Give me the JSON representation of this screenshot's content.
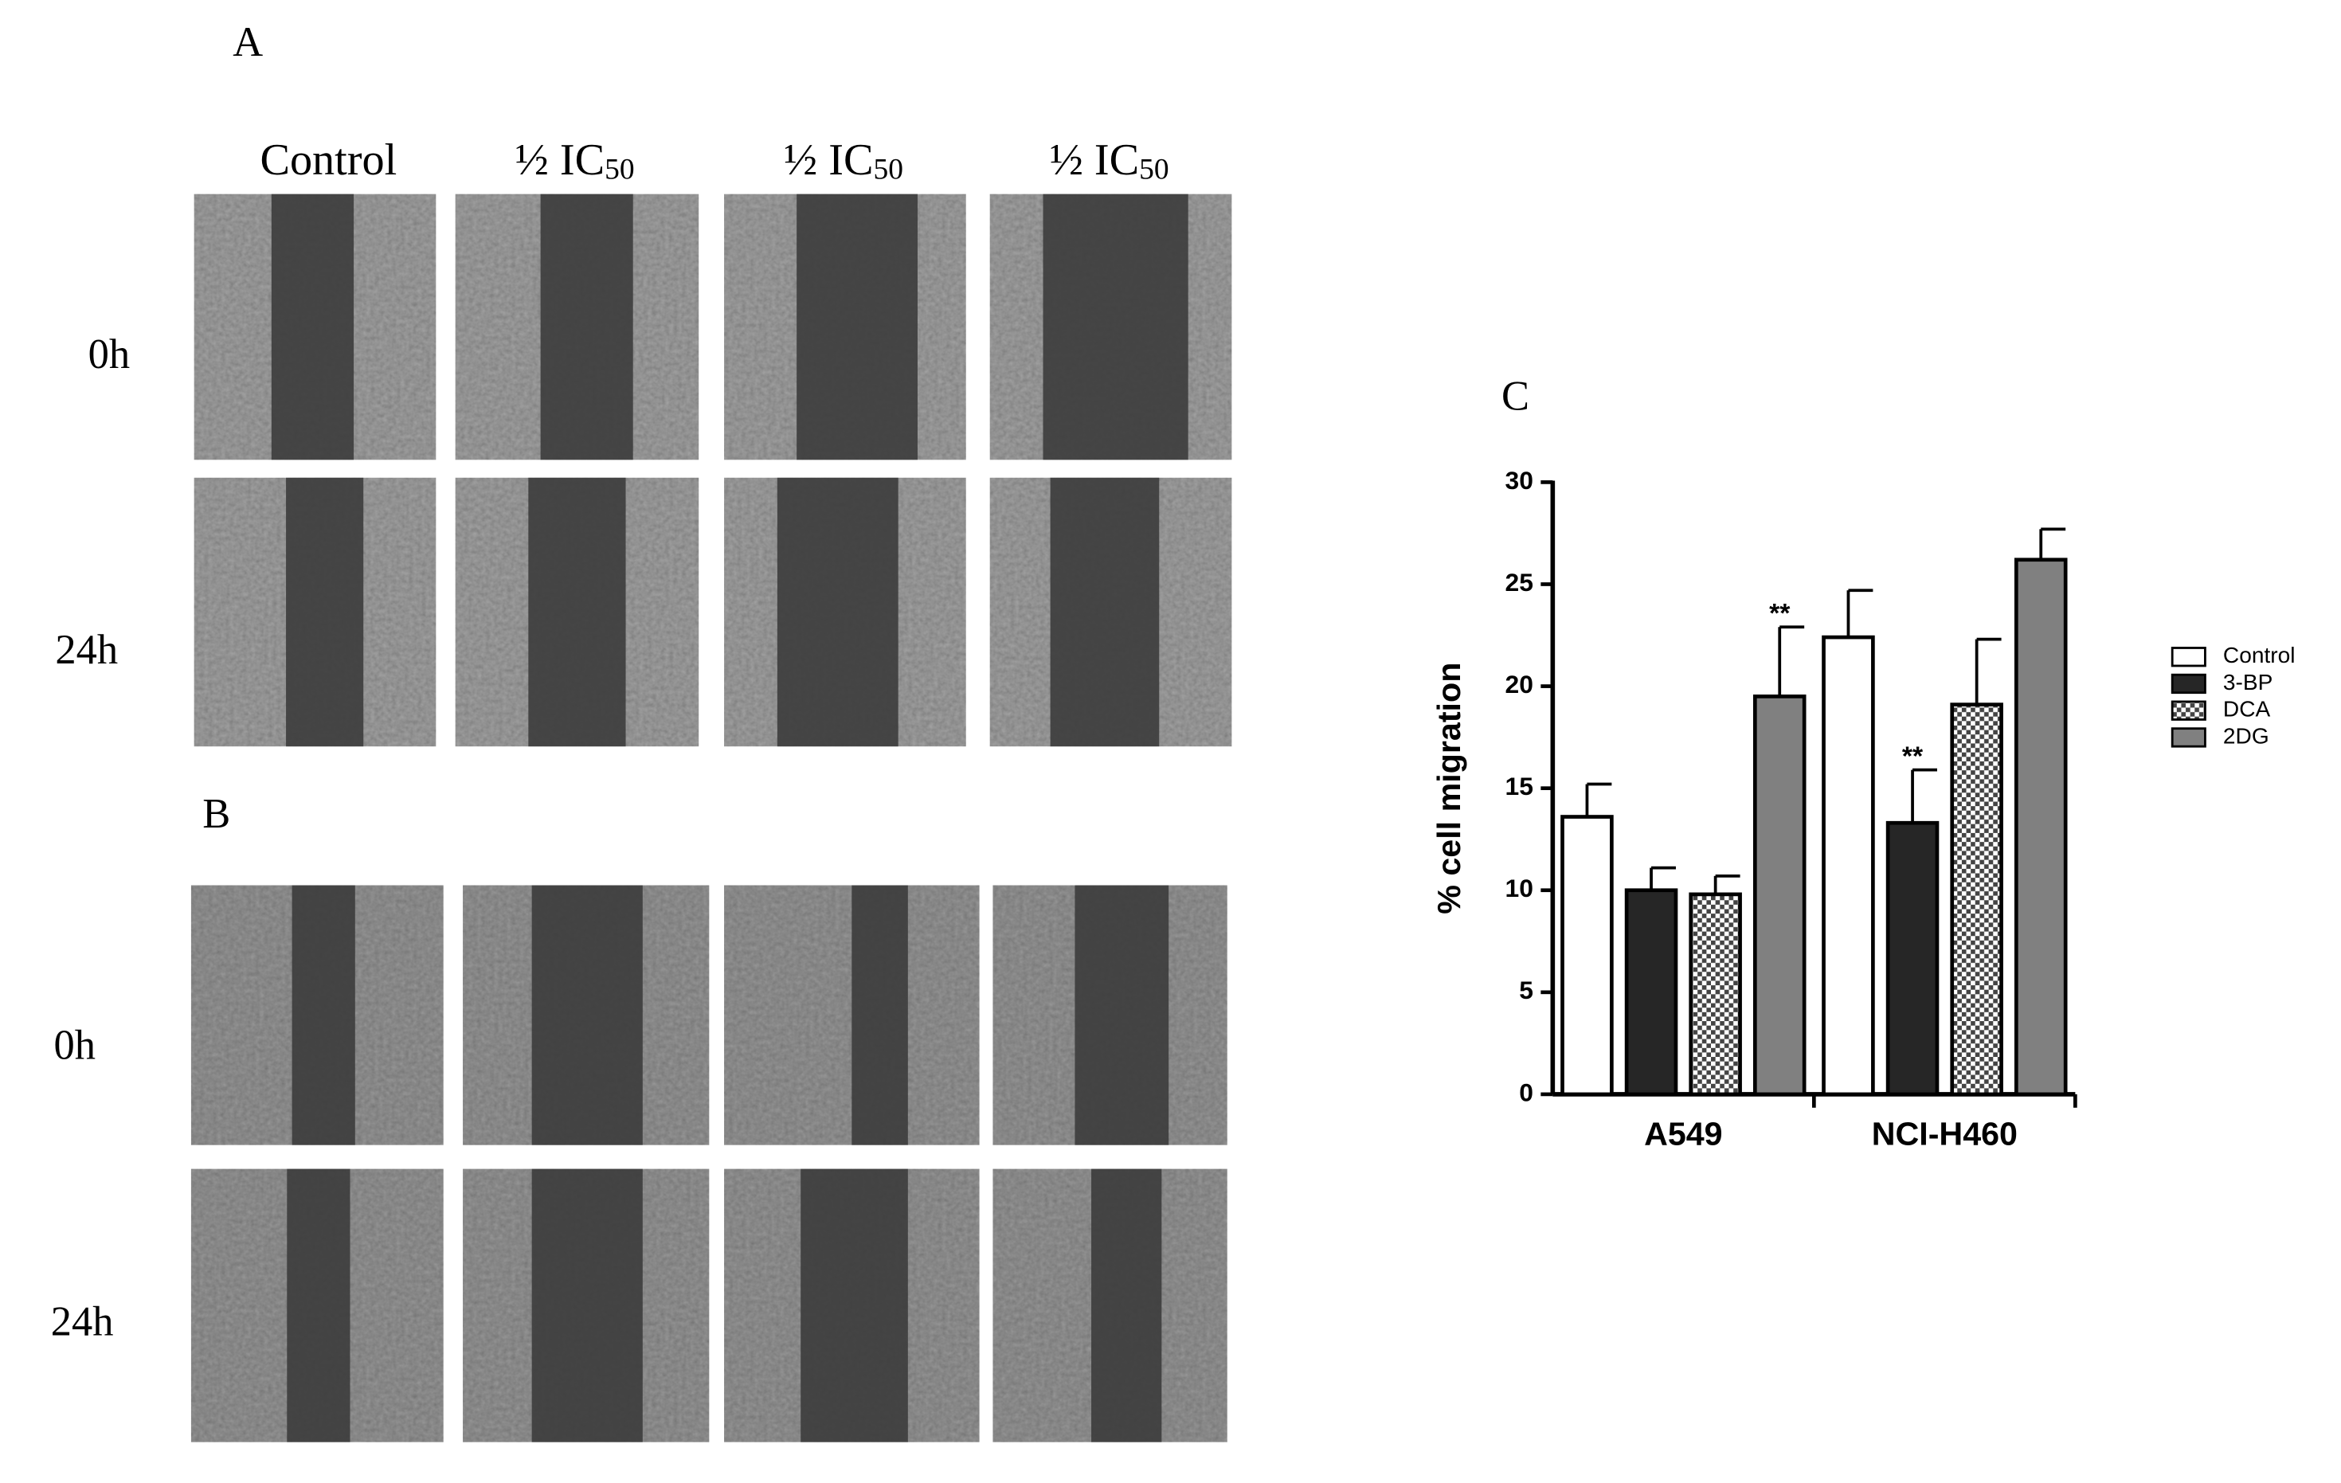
{
  "panel_a": {
    "label": "A",
    "columns": [
      {
        "text": "Control"
      },
      {
        "text": "½ IC",
        "subscript": "50"
      },
      {
        "text": "½ IC",
        "subscript": "50"
      },
      {
        "text": "½ IC",
        "subscript": "50"
      }
    ],
    "rows": [
      "0h",
      "24h"
    ]
  },
  "panel_b": {
    "label": "B",
    "rows": [
      "0h",
      "24h"
    ]
  },
  "chart_data": {
    "type": "bar",
    "panel_label": "C",
    "y_label": "% cell migration",
    "categories": [
      "A549",
      "NCI-H460"
    ],
    "series": [
      {
        "name": "Control",
        "color": "#ffffff",
        "values": [
          13.6,
          22.4
        ],
        "errors": [
          1.6,
          2.3
        ]
      },
      {
        "name": "3-BP",
        "color": "#262626",
        "values": [
          10.0,
          13.3
        ],
        "errors": [
          1.1,
          2.6
        ]
      },
      {
        "name": "DCA",
        "color": "#ffffff",
        "pattern": "checker",
        "values": [
          9.8,
          19.1
        ],
        "errors": [
          0.9,
          3.2
        ]
      },
      {
        "name": "2DG",
        "color": "#808080",
        "values": [
          19.5,
          26.2
        ],
        "errors": [
          3.4,
          1.5
        ]
      }
    ],
    "annotations": [
      {
        "text": "**",
        "category": "A549",
        "series": "2DG"
      },
      {
        "text": "**",
        "category": "NCI-H460",
        "series": "3-BP"
      }
    ],
    "ylim": [
      0,
      30
    ],
    "yticks": [
      0,
      5,
      10,
      15,
      20,
      25,
      30
    ],
    "legend": "right"
  }
}
